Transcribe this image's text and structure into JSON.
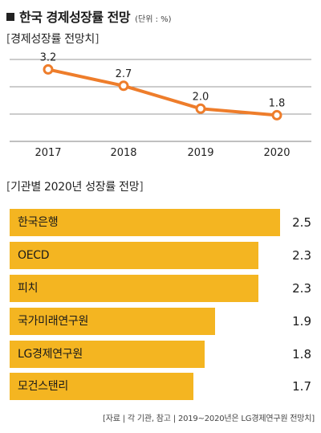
{
  "title": "한국 경제성장률 전망",
  "unit_note": "(단위 : %)",
  "line_section_label": "경제성장률 전망치",
  "bar_section_label": "기관별 2020년 성장률 전망",
  "source": "[자료 | 각 기관, 참고 | 2019~2020년은 LG경제연구원 전망치]",
  "colors": {
    "line": "#ee7d2b",
    "bar": "#f4b521",
    "grid": "#9a9a9a"
  },
  "chart_data": [
    {
      "type": "line",
      "title": "경제성장률 전망치",
      "categories": [
        "2017",
        "2018",
        "2019",
        "2020"
      ],
      "values": [
        3.2,
        2.7,
        2.0,
        1.8
      ],
      "value_labels": [
        "3.2",
        "2.7",
        "2.0",
        "1.8"
      ],
      "ylim": [
        1.0,
        3.8
      ],
      "grid": true
    },
    {
      "type": "bar",
      "orientation": "horizontal",
      "title": "기관별 2020년 성장률 전망",
      "categories": [
        "한국은행",
        "OECD",
        "피치",
        "국가미래연구원",
        "LG경제연구원",
        "모건스탠리"
      ],
      "values": [
        2.5,
        2.3,
        2.3,
        1.9,
        1.8,
        1.7
      ],
      "value_labels": [
        "2.5",
        "2.3",
        "2.3",
        "1.9",
        "1.8",
        "1.7"
      ],
      "xlim": [
        0,
        2.7
      ]
    }
  ]
}
